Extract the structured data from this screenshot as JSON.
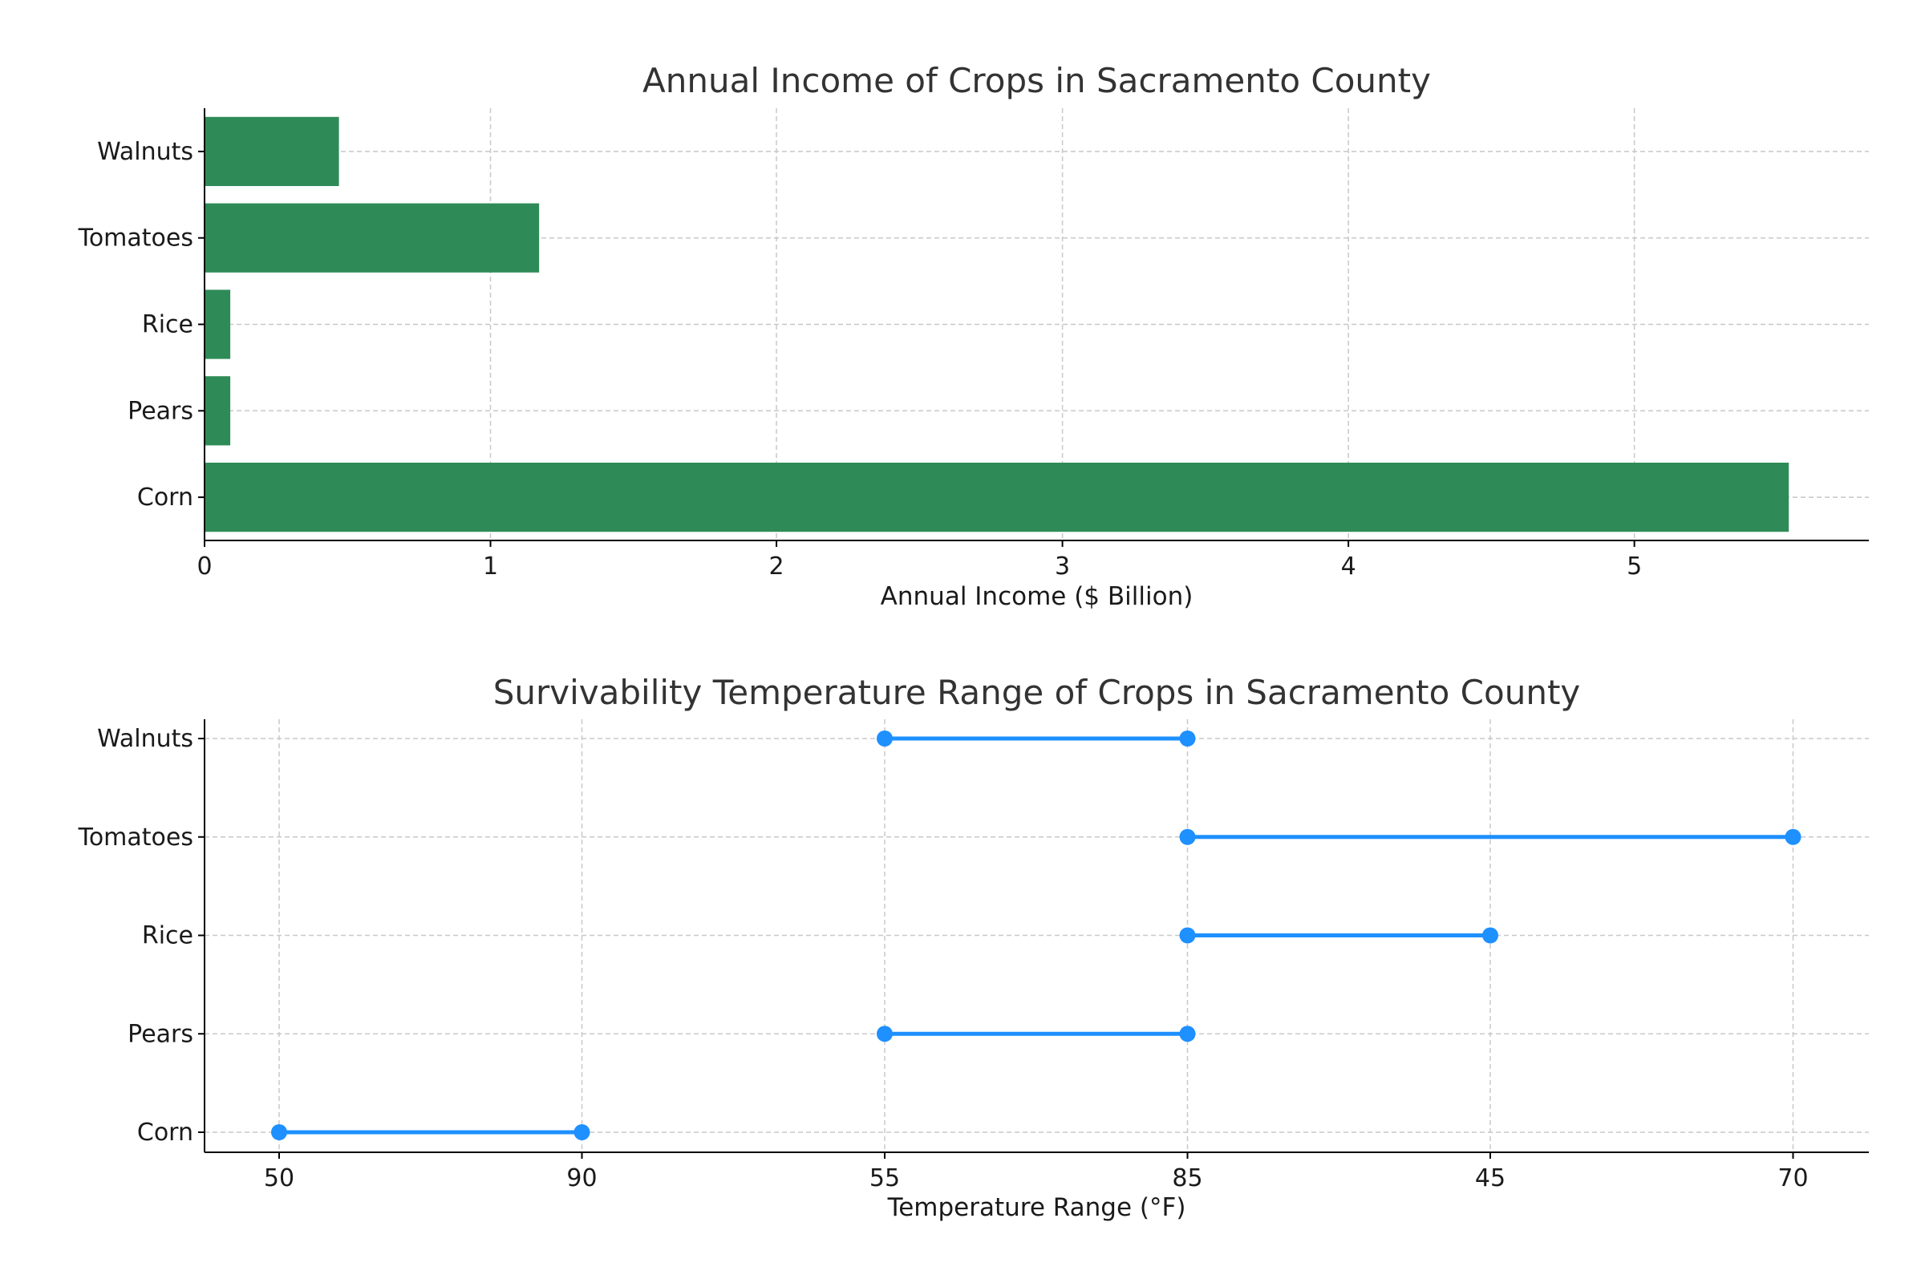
{
  "chart_data": [
    {
      "type": "bar",
      "orientation": "horizontal",
      "title": "Annual Income of Crops in Sacramento County",
      "xlabel": "Annual Income ($ Billion)",
      "ylabel": "",
      "categories": [
        "Corn",
        "Pears",
        "Rice",
        "Tomatoes",
        "Walnuts"
      ],
      "values": [
        5.54,
        0.09,
        0.09,
        1.17,
        0.47
      ],
      "xlim": [
        0,
        5.82
      ],
      "xticks": [
        0,
        1,
        2,
        3,
        4,
        5
      ],
      "grid": true,
      "color": "#2e8b57"
    },
    {
      "type": "line",
      "subtype": "dumbbell",
      "title": "Survivability Temperature Range of Crops in Sacramento County",
      "xlabel": "Temperature Range (°F)",
      "ylabel": "",
      "categories": [
        "Corn",
        "Pears",
        "Rice",
        "Tomatoes",
        "Walnuts"
      ],
      "x_axis_type": "categorical",
      "xticks": [
        "50",
        "90",
        "55",
        "85",
        "45",
        "70"
      ],
      "ranges": [
        {
          "category": "Corn",
          "low": "50",
          "high": "90"
        },
        {
          "category": "Pears",
          "low": "55",
          "high": "85"
        },
        {
          "category": "Rice",
          "low": "85",
          "high": "45"
        },
        {
          "category": "Tomatoes",
          "low": "85",
          "high": "70"
        },
        {
          "category": "Walnuts",
          "low": "55",
          "high": "85"
        }
      ],
      "grid": true,
      "color": "#1e90ff"
    }
  ]
}
